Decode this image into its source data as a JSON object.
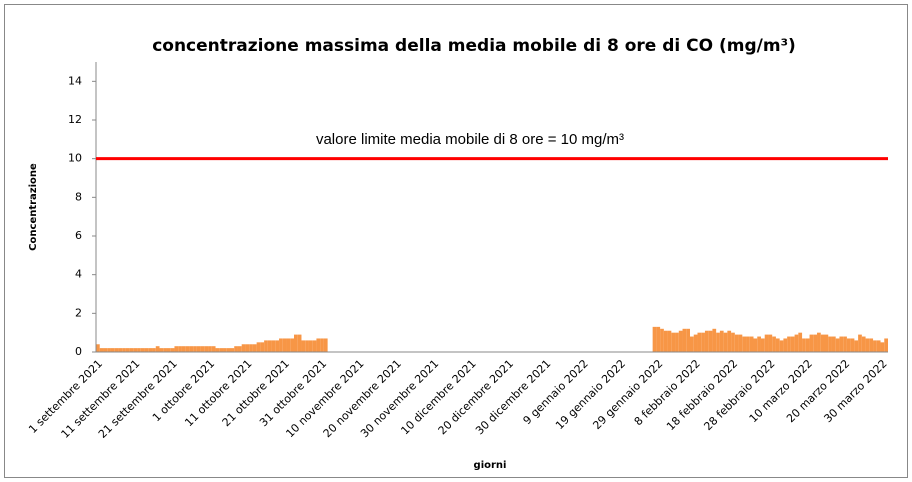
{
  "chart_data": {
    "type": "bar",
    "title": "concentrazione massima della media mobile di 8 ore di CO (mg/m³)",
    "x_label": "giorni",
    "y_label": "Concentrazione",
    "color": "#f79646",
    "ylim": [
      0,
      15
    ],
    "yticks": [
      0,
      2,
      4,
      6,
      8,
      10,
      12,
      14
    ],
    "grid": false,
    "reference_line": {
      "value": 10,
      "label": "valore limite media mobile di 8 ore = 10 mg/m³",
      "color": "#ff0000"
    },
    "categories": [
      "1 settembre 2021",
      null,
      null,
      null,
      null,
      null,
      null,
      null,
      null,
      null,
      "11 settembre 2021",
      null,
      null,
      null,
      null,
      null,
      null,
      null,
      null,
      null,
      "21 settembre 2021",
      null,
      null,
      null,
      null,
      null,
      null,
      null,
      null,
      null,
      "1 ottobre 2021",
      null,
      null,
      null,
      null,
      null,
      null,
      null,
      null,
      null,
      "11 ottobre 2021",
      null,
      null,
      null,
      null,
      null,
      null,
      null,
      null,
      null,
      "21 ottobre 2021",
      null,
      null,
      null,
      null,
      null,
      null,
      null,
      null,
      null,
      "31 ottobre 2021",
      null,
      null,
      null,
      null,
      null,
      null,
      null,
      null,
      null,
      "10 novembre 2021",
      null,
      null,
      null,
      null,
      null,
      null,
      null,
      null,
      null,
      "20 novembre 2021",
      null,
      null,
      null,
      null,
      null,
      null,
      null,
      null,
      null,
      "30 novembre 2021",
      null,
      null,
      null,
      null,
      null,
      null,
      null,
      null,
      null,
      "10 dicembre 2021",
      null,
      null,
      null,
      null,
      null,
      null,
      null,
      null,
      null,
      "20 dicembre 2021",
      null,
      null,
      null,
      null,
      null,
      null,
      null,
      null,
      null,
      "30 dicembre 2021",
      null,
      null,
      null,
      null,
      null,
      null,
      null,
      null,
      null,
      "9 gennaio 2022",
      null,
      null,
      null,
      null,
      null,
      null,
      null,
      null,
      null,
      "19 gennaio 2022",
      null,
      null,
      null,
      null,
      null,
      null,
      null,
      null,
      null,
      "29 gennaio 2022",
      null,
      null,
      null,
      null,
      null,
      null,
      null,
      null,
      null,
      "8 febbraio 2022",
      null,
      null,
      null,
      null,
      null,
      null,
      null,
      null,
      null,
      "18 febbraio 2022",
      null,
      null,
      null,
      null,
      null,
      null,
      null,
      null,
      null,
      "28 febbraio 2022",
      null,
      null,
      null,
      null,
      null,
      null,
      null,
      null,
      null,
      "10 marzo 2022",
      null,
      null,
      null,
      null,
      null,
      null,
      null,
      null,
      null,
      "20 marzo 2022",
      null,
      null,
      null,
      null,
      null,
      null,
      null,
      null,
      null,
      "30 marzo 2022",
      null
    ],
    "values": [
      0.4,
      0.2,
      0.2,
      0.2,
      0.2,
      0.2,
      0.2,
      0.2,
      0.2,
      0.2,
      0.2,
      0.2,
      0.2,
      0.2,
      0.2,
      0.2,
      0.3,
      0.2,
      0.2,
      0.2,
      0.2,
      0.3,
      0.3,
      0.3,
      0.3,
      0.3,
      0.3,
      0.3,
      0.3,
      0.3,
      0.3,
      0.3,
      0.2,
      0.2,
      0.2,
      0.2,
      0.2,
      0.3,
      0.3,
      0.4,
      0.4,
      0.4,
      0.4,
      0.5,
      0.5,
      0.6,
      0.6,
      0.6,
      0.6,
      0.7,
      0.7,
      0.7,
      0.7,
      0.9,
      0.9,
      0.6,
      0.6,
      0.6,
      0.6,
      0.7,
      0.7,
      0.7,
      null,
      null,
      null,
      null,
      null,
      null,
      null,
      null,
      null,
      null,
      null,
      null,
      null,
      null,
      null,
      null,
      null,
      null,
      null,
      null,
      null,
      null,
      null,
      null,
      null,
      null,
      null,
      null,
      null,
      null,
      null,
      null,
      null,
      null,
      null,
      null,
      null,
      null,
      null,
      null,
      null,
      null,
      null,
      null,
      null,
      null,
      null,
      null,
      null,
      null,
      null,
      null,
      null,
      null,
      null,
      null,
      null,
      null,
      null,
      null,
      null,
      null,
      null,
      null,
      null,
      null,
      null,
      null,
      null,
      null,
      null,
      null,
      null,
      null,
      null,
      null,
      null,
      null,
      null,
      null,
      null,
      null,
      null,
      null,
      null,
      null,
      null,
      1.3,
      1.3,
      1.2,
      1.1,
      1.1,
      1.0,
      1.0,
      1.1,
      1.2,
      1.2,
      0.8,
      0.9,
      1.0,
      1.0,
      1.1,
      1.1,
      1.2,
      1.0,
      1.1,
      1.0,
      1.1,
      1.0,
      0.9,
      0.9,
      0.8,
      0.8,
      0.8,
      0.7,
      0.8,
      0.7,
      0.9,
      0.9,
      0.8,
      0.7,
      0.6,
      0.7,
      0.8,
      0.8,
      0.9,
      1.0,
      0.7,
      0.7,
      0.9,
      0.9,
      1.0,
      0.9,
      0.9,
      0.8,
      0.8,
      0.7,
      0.8,
      0.8,
      0.7,
      0.7,
      0.6,
      0.9,
      0.8,
      0.7,
      0.7,
      0.6,
      0.6,
      0.5,
      0.7
    ]
  }
}
